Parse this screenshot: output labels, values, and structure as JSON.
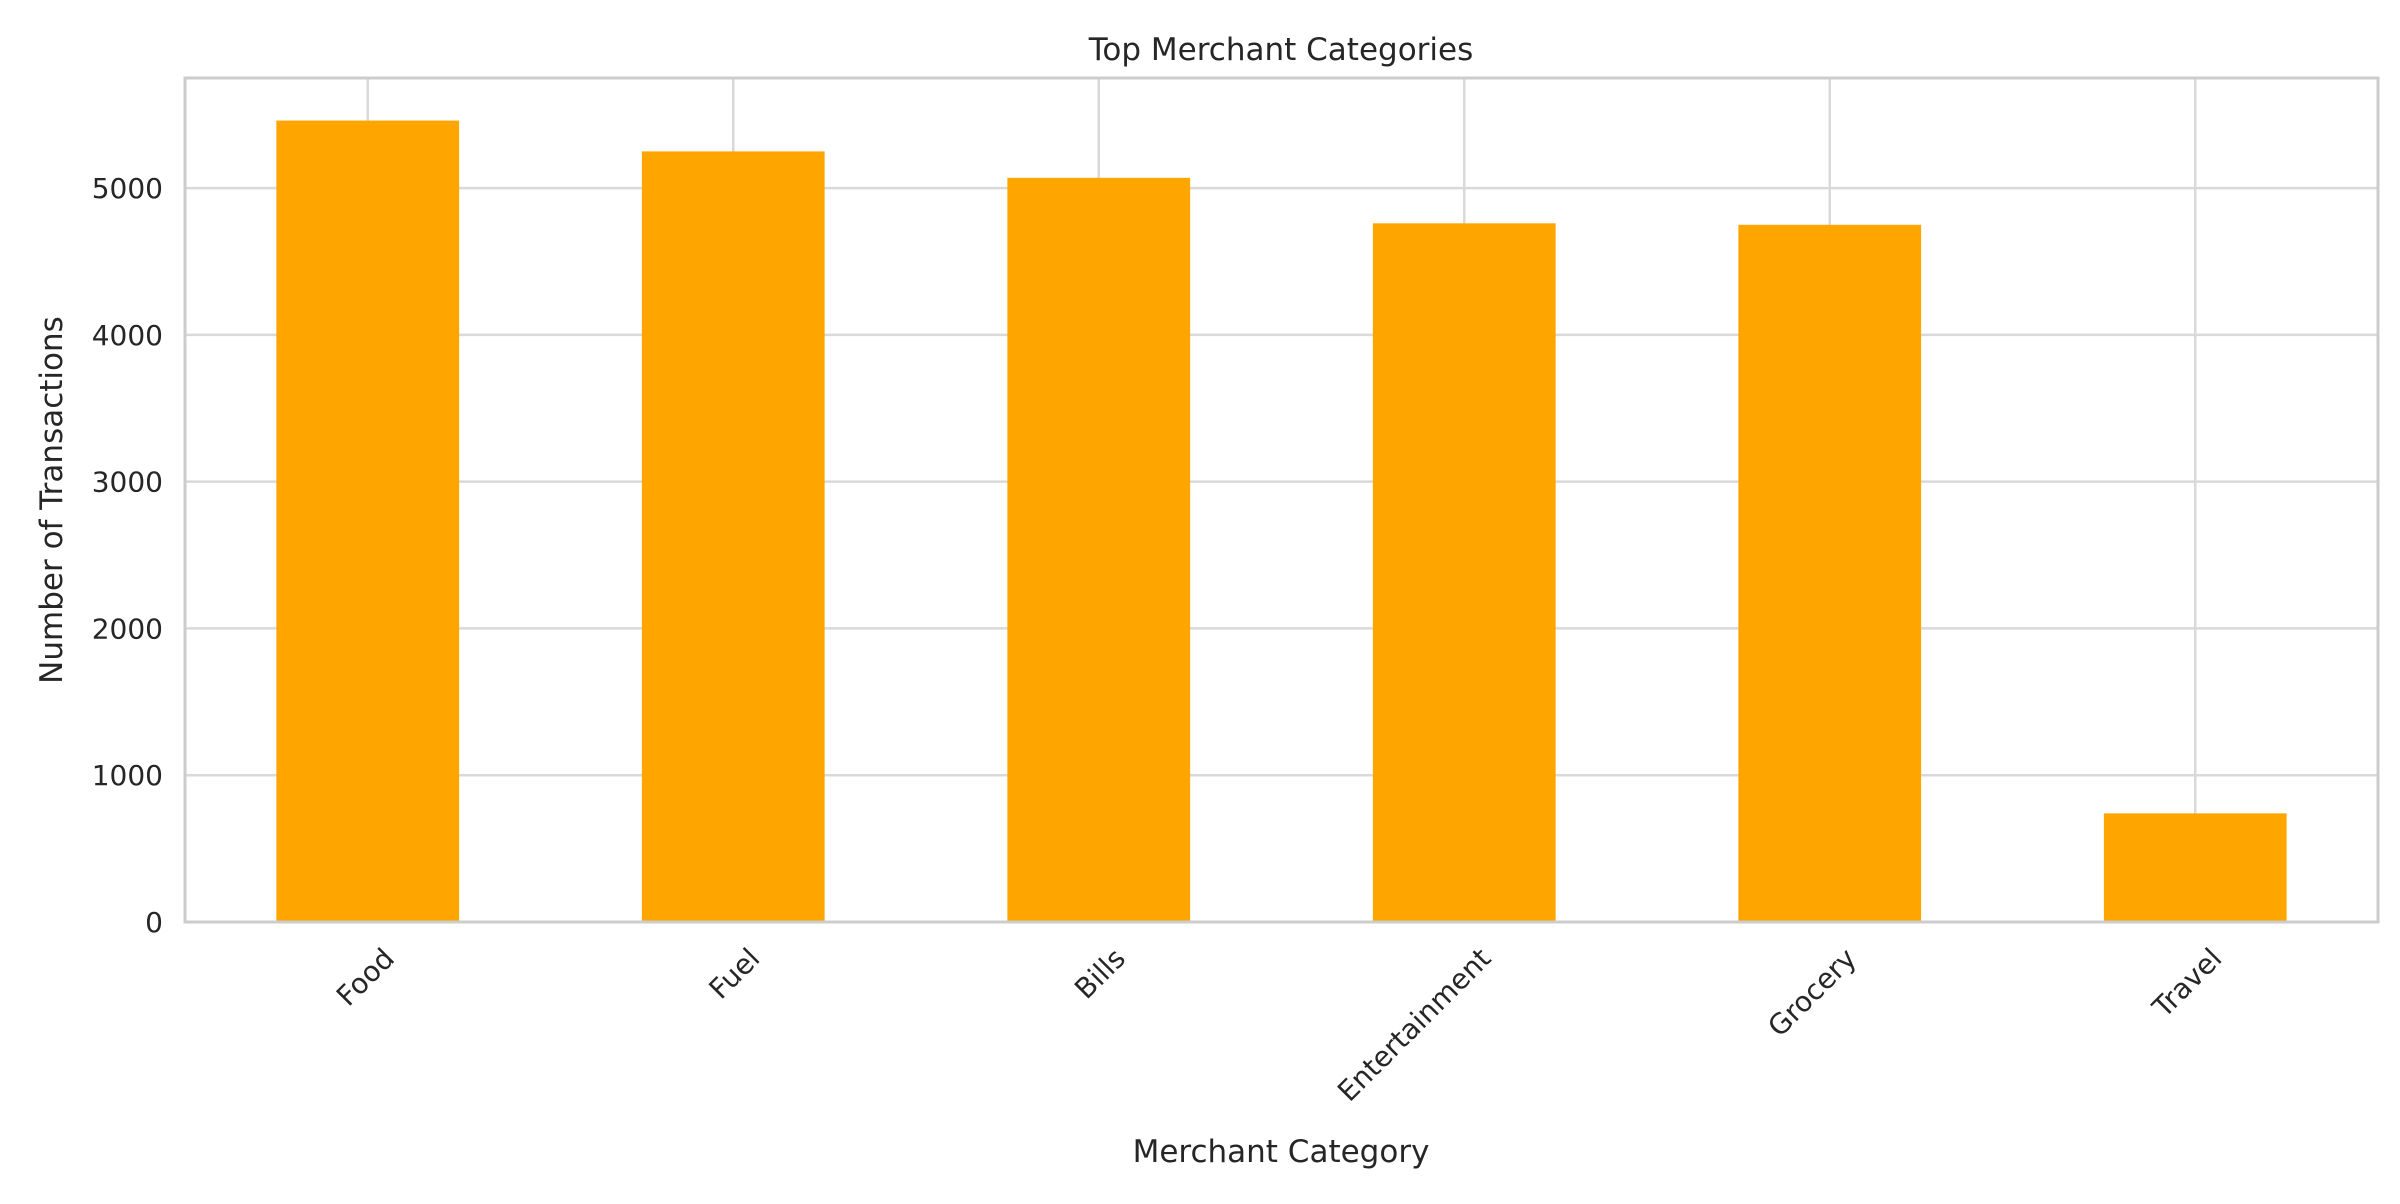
{
  "chart_data": {
    "type": "bar",
    "title": "Top Merchant Categories",
    "xlabel": "Merchant Category",
    "ylabel": "Number of Transactions",
    "categories": [
      "Food",
      "Fuel",
      "Bills",
      "Entertainment",
      "Grocery",
      "Travel"
    ],
    "values": [
      5460,
      5250,
      5070,
      4760,
      4750,
      740
    ],
    "ylim": [
      0,
      5750
    ],
    "yticks": [
      0,
      1000,
      2000,
      3000,
      4000,
      5000
    ],
    "grid": true,
    "legend": "none",
    "bar_color": "#FFA500",
    "grid_color": "#d9d9d9",
    "spine_color": "#cccccc",
    "text_color": "#262626"
  }
}
